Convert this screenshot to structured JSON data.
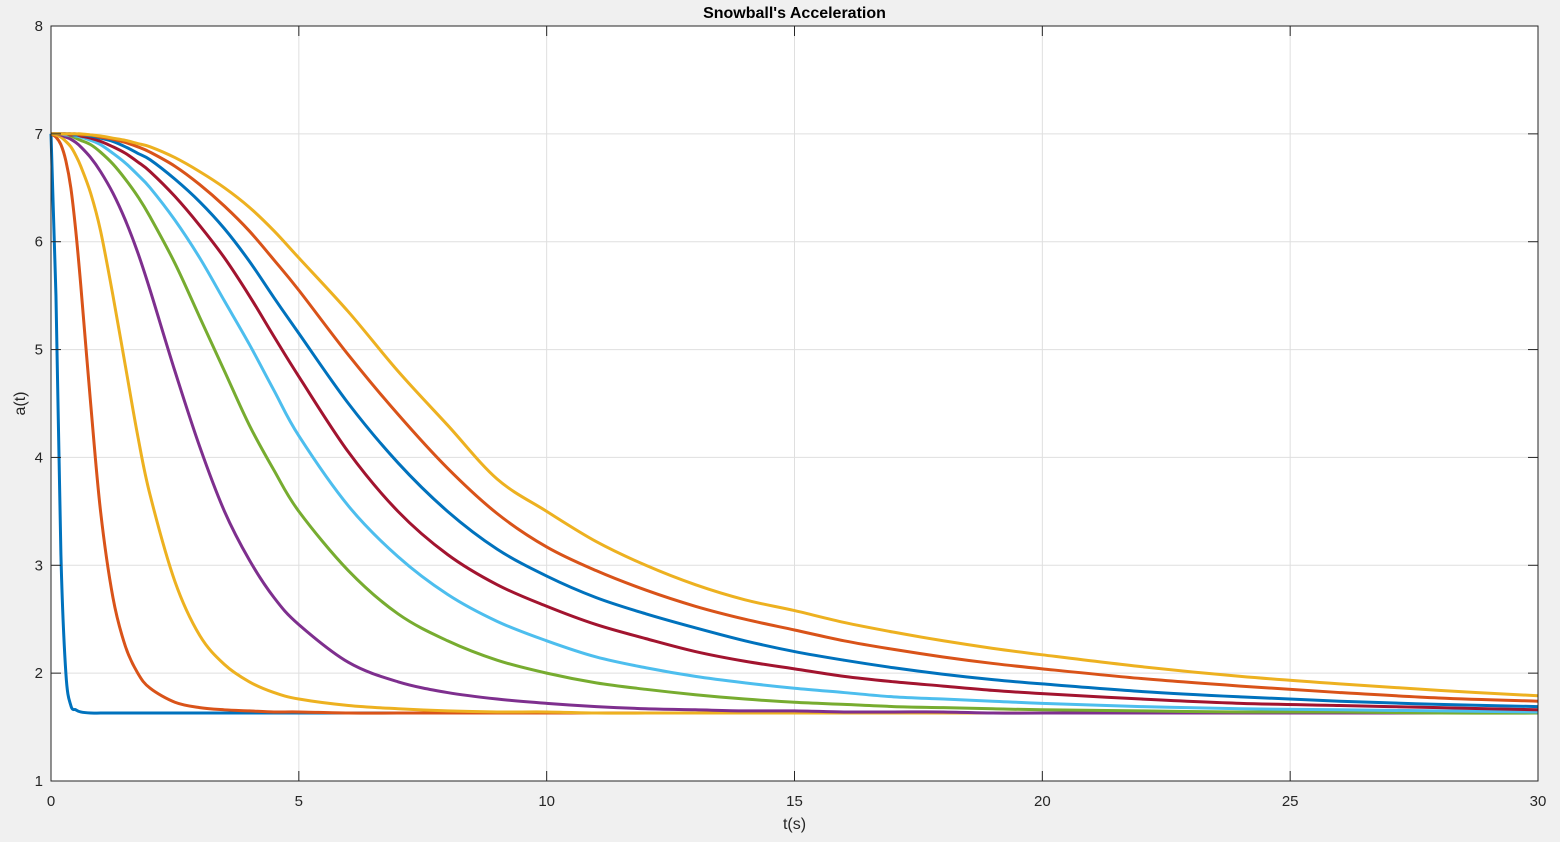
{
  "chart_data": {
    "type": "line",
    "title": "Snowball's Acceleration",
    "xlabel": "t(s)",
    "ylabel": "a(t)",
    "xlim": [
      0,
      30
    ],
    "ylim": [
      1,
      8
    ],
    "xticks": [
      "0",
      "5",
      "10",
      "15",
      "20",
      "25",
      "30"
    ],
    "yticks": [
      "1",
      "2",
      "3",
      "4",
      "5",
      "6",
      "7",
      "8"
    ],
    "grid": true,
    "x": [
      0,
      0.1,
      0.2,
      0.3,
      0.4,
      0.5,
      0.6,
      0.8,
      1,
      1.25,
      1.5,
      1.75,
      2,
      2.5,
      3,
      3.5,
      4,
      4.5,
      5,
      6,
      7,
      8,
      9,
      10,
      11,
      12,
      13,
      14,
      15,
      16,
      17,
      18,
      19,
      20,
      22,
      24,
      26,
      28,
      30
    ],
    "series": [
      {
        "color": "#0072BD",
        "values": [
          7,
          5.5,
          3.1,
          2.0,
          1.7,
          1.66,
          1.64,
          1.63,
          1.63,
          1.63,
          1.63,
          1.63,
          1.63,
          1.63,
          1.63,
          1.63,
          1.63,
          1.63,
          1.63,
          1.63,
          1.63,
          1.63,
          1.63,
          1.63,
          1.63,
          1.63,
          1.63,
          1.63,
          1.63,
          1.63,
          1.63,
          1.63,
          1.63,
          1.63,
          1.63,
          1.63,
          1.63,
          1.63,
          1.63
        ]
      },
      {
        "color": "#D95319",
        "values": [
          7,
          6.97,
          6.9,
          6.75,
          6.5,
          6.1,
          5.6,
          4.5,
          3.5,
          2.7,
          2.25,
          2.0,
          1.86,
          1.73,
          1.68,
          1.66,
          1.65,
          1.64,
          1.64,
          1.63,
          1.63,
          1.63,
          1.63,
          1.63,
          1.63,
          1.63,
          1.63,
          1.63,
          1.63,
          1.63,
          1.63,
          1.63,
          1.63,
          1.63,
          1.63,
          1.63,
          1.63,
          1.63,
          1.63
        ]
      },
      {
        "color": "#EDB120",
        "values": [
          7,
          6.99,
          6.97,
          6.93,
          6.88,
          6.8,
          6.7,
          6.45,
          6.1,
          5.5,
          4.85,
          4.2,
          3.65,
          2.85,
          2.35,
          2.08,
          1.92,
          1.82,
          1.76,
          1.7,
          1.67,
          1.65,
          1.64,
          1.64,
          1.63,
          1.63,
          1.63,
          1.63,
          1.63,
          1.63,
          1.63,
          1.63,
          1.63,
          1.63,
          1.63,
          1.63,
          1.63,
          1.63,
          1.63
        ]
      },
      {
        "color": "#7E2F8E",
        "values": [
          7,
          7,
          6.99,
          6.97,
          6.95,
          6.92,
          6.88,
          6.78,
          6.65,
          6.45,
          6.2,
          5.9,
          5.55,
          4.8,
          4.1,
          3.5,
          3.05,
          2.7,
          2.45,
          2.1,
          1.92,
          1.82,
          1.76,
          1.72,
          1.69,
          1.67,
          1.66,
          1.65,
          1.65,
          1.64,
          1.64,
          1.64,
          1.63,
          1.63,
          1.63,
          1.63,
          1.63,
          1.63,
          1.63
        ]
      },
      {
        "color": "#77AC30",
        "values": [
          7,
          7,
          7,
          6.99,
          6.98,
          6.96,
          6.94,
          6.9,
          6.83,
          6.72,
          6.58,
          6.42,
          6.23,
          5.8,
          5.3,
          4.8,
          4.3,
          3.88,
          3.5,
          2.95,
          2.55,
          2.3,
          2.12,
          2.0,
          1.91,
          1.85,
          1.8,
          1.76,
          1.73,
          1.71,
          1.69,
          1.68,
          1.67,
          1.66,
          1.65,
          1.64,
          1.64,
          1.63,
          1.63
        ]
      },
      {
        "color": "#4DBEEE",
        "values": [
          7,
          7,
          7,
          6.99,
          6.99,
          6.98,
          6.97,
          6.94,
          6.9,
          6.82,
          6.73,
          6.62,
          6.5,
          6.2,
          5.85,
          5.45,
          5.05,
          4.62,
          4.2,
          3.55,
          3.08,
          2.73,
          2.48,
          2.3,
          2.15,
          2.05,
          1.97,
          1.91,
          1.86,
          1.82,
          1.78,
          1.76,
          1.74,
          1.72,
          1.69,
          1.67,
          1.66,
          1.65,
          1.64
        ]
      },
      {
        "color": "#A2142F",
        "values": [
          7,
          7,
          7,
          7,
          6.99,
          6.99,
          6.98,
          6.96,
          6.93,
          6.88,
          6.82,
          6.74,
          6.65,
          6.42,
          6.15,
          5.85,
          5.5,
          5.12,
          4.75,
          4.05,
          3.5,
          3.1,
          2.82,
          2.62,
          2.45,
          2.32,
          2.2,
          2.11,
          2.04,
          1.97,
          1.92,
          1.88,
          1.84,
          1.81,
          1.76,
          1.72,
          1.7,
          1.68,
          1.66
        ]
      },
      {
        "color": "#0072BD",
        "values": [
          7,
          7,
          7,
          7,
          7,
          6.99,
          6.99,
          6.98,
          6.96,
          6.93,
          6.88,
          6.82,
          6.76,
          6.58,
          6.37,
          6.12,
          5.82,
          5.48,
          5.15,
          4.5,
          3.95,
          3.5,
          3.15,
          2.9,
          2.7,
          2.55,
          2.42,
          2.3,
          2.2,
          2.12,
          2.05,
          1.99,
          1.94,
          1.9,
          1.83,
          1.78,
          1.74,
          1.71,
          1.69
        ]
      },
      {
        "color": "#D95319",
        "values": [
          7,
          7,
          7,
          7,
          7,
          7,
          6.99,
          6.99,
          6.97,
          6.95,
          6.92,
          6.88,
          6.83,
          6.7,
          6.53,
          6.33,
          6.1,
          5.83,
          5.55,
          4.95,
          4.4,
          3.9,
          3.48,
          3.17,
          2.95,
          2.77,
          2.62,
          2.5,
          2.4,
          2.3,
          2.22,
          2.15,
          2.09,
          2.04,
          1.95,
          1.88,
          1.82,
          1.77,
          1.74
        ]
      },
      {
        "color": "#EDB120",
        "values": [
          7,
          7,
          7,
          7,
          7,
          7,
          7,
          6.99,
          6.98,
          6.96,
          6.94,
          6.91,
          6.88,
          6.78,
          6.65,
          6.5,
          6.32,
          6.1,
          5.85,
          5.35,
          4.8,
          4.3,
          3.8,
          3.5,
          3.22,
          3.0,
          2.82,
          2.68,
          2.58,
          2.47,
          2.38,
          2.3,
          2.23,
          2.17,
          2.06,
          1.97,
          1.9,
          1.84,
          1.79
        ]
      }
    ]
  }
}
